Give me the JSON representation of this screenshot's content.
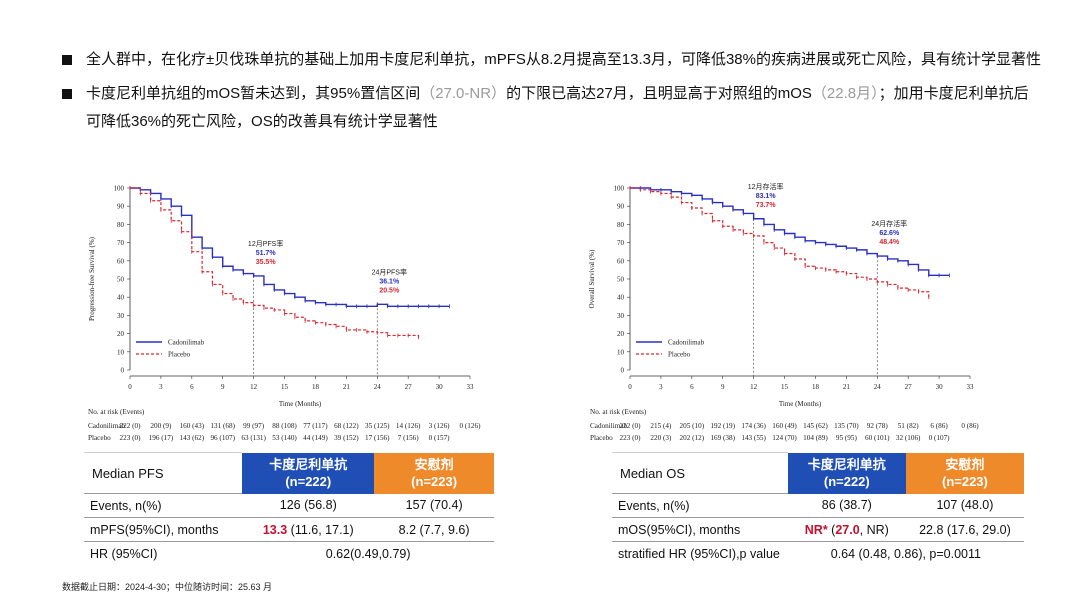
{
  "bullets": [
    {
      "text": "全人群中，在化疗±贝伐珠单抗的基础上加用卡度尼利单抗，mPFS从8.2月提高至13.3月，可降低38%的疾病进展或死亡风险，具有统计学显著性"
    },
    {
      "text_a": "卡度尼利单抗组的mOS暂未达到，其95%置信区间",
      "text_b": "（27.0-NR）",
      "text_c": "的下限已高达27月，且明显高于对照组的mOS",
      "text_d": "（22.8月）",
      "text_e": "；加用卡度尼利单抗后可降低36%的死亡风险，OS的改善具有统计学显著性"
    }
  ],
  "colors": {
    "cadonilimab": "#2a2fc2",
    "placebo": "#d8262e",
    "header_blue": "#1f4fb5",
    "header_orange": "#ee8a2a"
  },
  "chart_data": [
    {
      "type": "line",
      "ylabel": "Progression-free Survival (%)",
      "xlabel": "Time (Months)",
      "xticks": [
        0,
        3,
        6,
        9,
        12,
        15,
        18,
        21,
        24,
        27,
        30,
        33
      ],
      "yticks": [
        0,
        10,
        20,
        30,
        40,
        50,
        60,
        70,
        80,
        90,
        100
      ],
      "xlim": [
        0,
        33
      ],
      "ylim": [
        0,
        100
      ],
      "legend": [
        "Cadonilimab",
        "Placebo"
      ],
      "legend_position": "bottom-left",
      "series": [
        {
          "name": "Cadonilimab",
          "x": [
            0,
            1,
            2,
            3,
            4,
            5,
            6,
            7,
            8,
            9,
            10,
            11,
            12,
            13,
            14,
            15,
            16,
            17,
            18,
            19,
            20,
            21,
            22,
            23,
            24,
            25,
            26,
            27,
            28,
            29,
            30,
            31
          ],
          "y": [
            100,
            99,
            97,
            94,
            90,
            85,
            73,
            67,
            62,
            57,
            55,
            53,
            51.7,
            47,
            44,
            42,
            40,
            38,
            37,
            36,
            36,
            35,
            35,
            35,
            36.1,
            35,
            35,
            35,
            35,
            35,
            35,
            35
          ]
        },
        {
          "name": "Placebo",
          "x": [
            0,
            1,
            2,
            3,
            4,
            5,
            6,
            7,
            8,
            9,
            10,
            11,
            12,
            13,
            14,
            15,
            16,
            17,
            18,
            19,
            20,
            21,
            22,
            23,
            24,
            25,
            26,
            27,
            28
          ],
          "y": [
            100,
            97,
            93,
            88,
            82,
            76,
            65,
            54,
            47,
            42,
            39,
            37,
            35.5,
            34,
            33,
            31,
            29,
            27,
            26,
            25,
            24,
            22,
            22,
            21,
            20.5,
            19,
            19,
            19,
            18
          ]
        }
      ],
      "landmarks": [
        {
          "x": 12,
          "label": "12月PFS率",
          "cad": "51.7%",
          "plc": "35.5%"
        },
        {
          "x": 24,
          "label": "24月PFS率",
          "cad": "36.1%",
          "plc": "20.5%"
        }
      ],
      "risk": {
        "header": "No. at risk (Events)",
        "rows": [
          {
            "name": "Cadonilimab",
            "values": [
              "222 (0)",
              "200 (9)",
              "160 (43)",
              "131 (68)",
              "99 (97)",
              "88 (108)",
              "77 (117)",
              "68 (122)",
              "35 (125)",
              "14 (126)",
              "3 (126)",
              "0 (126)"
            ]
          },
          {
            "name": "Placebo",
            "values": [
              "223 (0)",
              "196 (17)",
              "143 (62)",
              "96 (107)",
              "63 (131)",
              "53 (140)",
              "44 (149)",
              "39 (152)",
              "17 (156)",
              "7 (156)",
              "0 (157)"
            ]
          }
        ]
      }
    },
    {
      "type": "line",
      "ylabel": "Overall Survival (%)",
      "xlabel": "Time (Months)",
      "xticks": [
        0,
        3,
        6,
        9,
        12,
        15,
        18,
        21,
        24,
        27,
        30,
        33
      ],
      "yticks": [
        0,
        10,
        20,
        30,
        40,
        50,
        60,
        70,
        80,
        90,
        100
      ],
      "xlim": [
        0,
        33
      ],
      "ylim": [
        0,
        100
      ],
      "legend": [
        "Cadonilimab",
        "Placebo"
      ],
      "legend_position": "bottom-left",
      "series": [
        {
          "name": "Cadonilimab",
          "x": [
            0,
            1,
            2,
            3,
            4,
            5,
            6,
            7,
            8,
            9,
            10,
            11,
            12,
            13,
            14,
            15,
            16,
            17,
            18,
            19,
            20,
            21,
            22,
            23,
            24,
            25,
            26,
            27,
            28,
            29,
            30,
            31
          ],
          "y": [
            100,
            100,
            99,
            99,
            98,
            97,
            96,
            94,
            92,
            90,
            88,
            86,
            83.1,
            80,
            77,
            75,
            73,
            71,
            70,
            69,
            68,
            67,
            66,
            64,
            62.6,
            61,
            60,
            58,
            55,
            52,
            52,
            52
          ]
        },
        {
          "name": "Placebo",
          "x": [
            0,
            1,
            2,
            3,
            4,
            5,
            6,
            7,
            8,
            9,
            10,
            11,
            12,
            13,
            14,
            15,
            16,
            17,
            18,
            19,
            20,
            21,
            22,
            23,
            24,
            25,
            26,
            27,
            28,
            29
          ],
          "y": [
            100,
            99,
            98,
            97,
            95,
            92,
            89,
            86,
            82,
            79,
            77,
            75,
            73.7,
            70,
            67,
            64,
            61,
            57,
            56,
            55,
            54,
            53,
            51,
            50,
            48.4,
            47,
            45,
            44,
            43,
            40
          ]
        }
      ],
      "landmarks": [
        {
          "x": 12,
          "label": "12月存活率",
          "cad": "83.1%",
          "plc": "73.7%"
        },
        {
          "x": 24,
          "label": "24月存活率",
          "cad": "62.6%",
          "plc": "48.4%"
        }
      ],
      "risk": {
        "header": "No. at risk (Events)",
        "rows": [
          {
            "name": "Cadonilimab",
            "values": [
              "222 (0)",
              "215 (4)",
              "205 (10)",
              "192 (19)",
              "174 (36)",
              "160 (49)",
              "145 (62)",
              "135 (70)",
              "92 (78)",
              "51 (82)",
              "6 (86)",
              "0 (86)"
            ]
          },
          {
            "name": "Placebo",
            "values": [
              "223 (0)",
              "220 (3)",
              "202 (12)",
              "169 (38)",
              "143 (55)",
              "124 (70)",
              "104 (89)",
              "95 (95)",
              "60 (101)",
              "32 (106)",
              "0 (107)"
            ]
          }
        ]
      }
    }
  ],
  "pfs_table": {
    "title": "Median PFS",
    "col1": "卡度尼利单抗",
    "col1_n": "(n=222)",
    "col2": "安慰剂",
    "col2_n": "(n=223)",
    "events_label": "Events, n(%)",
    "events_1": "126 (56.8)",
    "events_2": "157 (70.4)",
    "m_label": "mPFS(95%CI), months",
    "m_1_bold": "13.3",
    "m_1_rest": " (11.6, 17.1)",
    "m_2": "8.2 (7.7, 9.6)",
    "hr_label": "HR (95%CI)",
    "hr": "0.62(0.49,0.79)"
  },
  "os_table": {
    "title": "Median OS",
    "col1": "卡度尼利单抗",
    "col1_n": "(n=222)",
    "col2": "安慰剂",
    "col2_n": "(n=223)",
    "events_label": "Events, n(%)",
    "events_1": "86 (38.7)",
    "events_2": "107 (48.0)",
    "m_label": "mOS(95%CI), months",
    "m_1_bold": "NR*",
    "m_1_mid": " (",
    "m_1_bold2": "27.0",
    "m_1_rest": ", NR)",
    "m_2": "22.8 (17.6, 29.0)",
    "hr_label": "stratified HR (95%CI),p value",
    "hr": "0.64 (0.48, 0.86), p=0.0011"
  },
  "footer": "数据截止日期：2024-4-30；中位随访时间：25.63 月"
}
